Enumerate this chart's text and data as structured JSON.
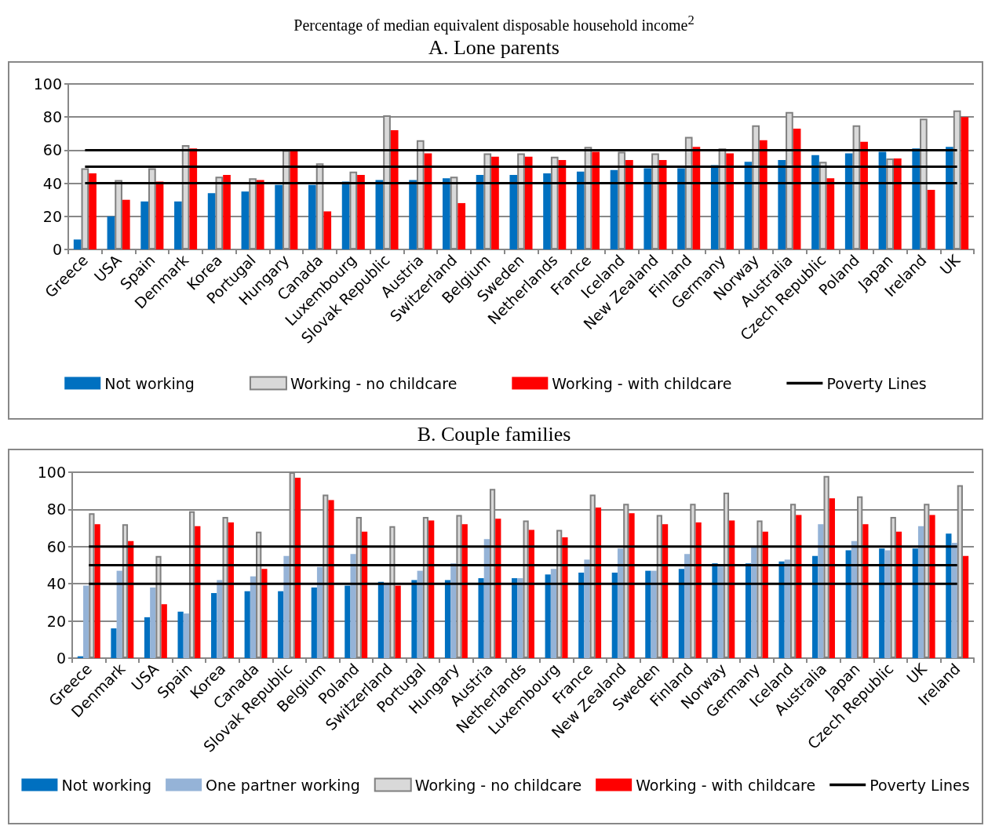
{
  "chart_data": [
    {
      "type": "bar",
      "title": "Percentage of median equivalent disposable household income$^{2}$",
      "subtitle": "A.  Lone parents",
      "categories": [
        "Greece",
        "USA",
        "Spain",
        "Denmark",
        "Korea",
        "Portugal",
        "Hungary",
        "Canada",
        "Luxembourg",
        "Slovak Republic",
        "Austria",
        "Switzerland",
        "Belgium",
        "Sweden",
        "Netherlands",
        "France",
        "Iceland",
        "New Zealand",
        "Finland",
        "Germany",
        "Norway",
        "Australia",
        "Czech Republic",
        "Poland",
        "Japan",
        "Ireland",
        "UK"
      ],
      "series": [
        {
          "name": "Not working",
          "color": "#0070c0",
          "values": [
            6,
            20,
            29,
            29,
            34,
            35,
            39,
            39,
            41,
            42,
            42,
            43,
            45,
            45,
            46,
            47,
            48,
            49,
            49,
            51,
            53,
            54,
            57,
            58,
            59,
            61,
            62
          ]
        },
        {
          "name": "Working - no childcare",
          "color": "#d9d9d9",
          "values": [
            49,
            42,
            49,
            63,
            44,
            43,
            60,
            52,
            47,
            81,
            66,
            44,
            58,
            58,
            56,
            62,
            59,
            58,
            68,
            61,
            75,
            83,
            53,
            75,
            55,
            79,
            84
          ]
        },
        {
          "name": "Working - with childcare",
          "color": "#ff0000",
          "values": [
            46,
            30,
            41,
            61,
            45,
            42,
            60,
            23,
            45,
            72,
            58,
            28,
            56,
            56,
            54,
            59,
            54,
            54,
            62,
            58,
            66,
            73,
            43,
            65,
            55,
            36,
            80
          ]
        },
        {
          "name": "Poverty Lines",
          "type": "line",
          "color": "#000000",
          "values": [
            60,
            60,
            60,
            60,
            60,
            60,
            60,
            60,
            60,
            60,
            60,
            60,
            60,
            60,
            60,
            60,
            60,
            60,
            60,
            60,
            60,
            60,
            60,
            60,
            60,
            60,
            60
          ]
        },
        {
          "type": "line",
          "color": "#000000",
          "values": [
            50,
            50,
            50,
            50,
            50,
            50,
            50,
            50,
            50,
            50,
            50,
            50,
            50,
            50,
            50,
            50,
            50,
            50,
            50,
            50,
            50,
            50,
            50,
            50,
            50,
            50,
            50
          ]
        },
        {
          "type": "line",
          "color": "#000000",
          "values": [
            40,
            40,
            40,
            40,
            40,
            40,
            40,
            40,
            40,
            40,
            40,
            40,
            40,
            40,
            40,
            40,
            40,
            40,
            40,
            40,
            40,
            40,
            40,
            40,
            40,
            40,
            40
          ]
        }
      ],
      "ylim": [
        0,
        100
      ],
      "yticks": [
        0,
        20,
        40,
        60,
        80,
        100
      ],
      "grid": "y",
      "legend": "bottom",
      "marker": "none"
    },
    {
      "type": "bar",
      "title": "B.  Couple families",
      "categories": [
        "Greece",
        "Denmark",
        "USA",
        "Spain",
        "Korea",
        "Canada",
        "Slovak Republic",
        "Belgium",
        "Poland",
        "Switzerland",
        "Portugal",
        "Hungary",
        "Austria",
        "Netherlands",
        "Luxembourg",
        "France",
        "New Zealand",
        "Sweden",
        "Finland",
        "Norway",
        "Germany",
        "Iceland",
        "Australia",
        "Japan",
        "Czech Republic",
        "UK",
        "Ireland"
      ],
      "series": [
        {
          "name": "Not working",
          "color": "#0070c0",
          "values": [
            1,
            16,
            22,
            25,
            35,
            36,
            36,
            38,
            39,
            41,
            42,
            42,
            43,
            43,
            45,
            46,
            46,
            47,
            48,
            51,
            51,
            52,
            55,
            58,
            59,
            59,
            67
          ]
        },
        {
          "name": "One partner working",
          "color": "#95b3d7",
          "values": [
            39,
            47,
            38,
            24,
            42,
            44,
            55,
            49,
            56,
            40,
            47,
            51,
            64,
            43,
            48,
            53,
            59,
            47,
            56,
            50,
            60,
            53,
            72,
            63,
            58,
            71,
            62
          ]
        },
        {
          "name": "Working - no childcare",
          "color": "#d9d9d9",
          "values": [
            78,
            72,
            55,
            79,
            76,
            68,
            100,
            88,
            76,
            71,
            76,
            77,
            91,
            74,
            69,
            88,
            83,
            77,
            83,
            89,
            74,
            83,
            98,
            87,
            76,
            83,
            93
          ]
        },
        {
          "name": "Working - with childcare",
          "color": "#ff0000",
          "values": [
            72,
            63,
            29,
            71,
            73,
            48,
            97,
            85,
            68,
            39,
            74,
            72,
            75,
            69,
            65,
            81,
            78,
            72,
            73,
            74,
            68,
            77,
            86,
            72,
            68,
            77,
            55
          ]
        },
        {
          "name": "Poverty Lines",
          "type": "line",
          "color": "#000000",
          "values": [
            60,
            60,
            60,
            60,
            60,
            60,
            60,
            60,
            60,
            60,
            60,
            60,
            60,
            60,
            60,
            60,
            60,
            60,
            60,
            60,
            60,
            60,
            60,
            60,
            60,
            60,
            60
          ]
        },
        {
          "type": "line",
          "color": "#000000",
          "values": [
            50,
            50,
            50,
            50,
            50,
            50,
            50,
            50,
            50,
            50,
            50,
            50,
            50,
            50,
            50,
            50,
            50,
            50,
            50,
            50,
            50,
            50,
            50,
            50,
            50,
            50,
            50
          ]
        },
        {
          "type": "line",
          "color": "#000000",
          "values": [
            40,
            40,
            40,
            40,
            40,
            40,
            40,
            40,
            40,
            40,
            40,
            40,
            40,
            40,
            40,
            40,
            40,
            40,
            40,
            40,
            40,
            40,
            40,
            40,
            40,
            40,
            40
          ]
        }
      ],
      "ylim": [
        0,
        100
      ],
      "yticks": [
        0,
        20,
        40,
        60,
        80,
        100
      ],
      "grid": "y",
      "legend": "bottom",
      "marker": "none"
    }
  ]
}
